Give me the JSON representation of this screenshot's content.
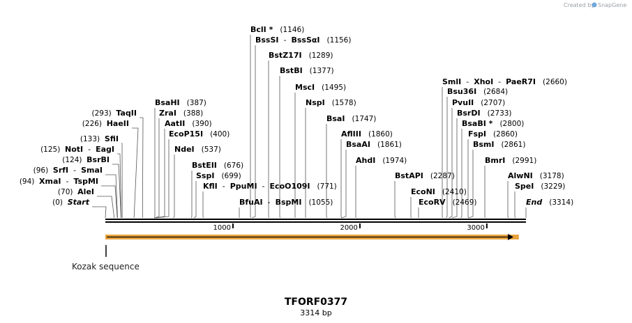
{
  "credit": {
    "prefix": "Created by",
    "brand": "SnapGene",
    "brand_color": "#6fa8dc",
    "icon": "snapgene-logo-icon"
  },
  "construct": {
    "name": "TFORF0377",
    "size_label": "3314 bp",
    "length_bp": 3314
  },
  "ruler": {
    "ticks": [
      {
        "bp": 1000,
        "label": "1000"
      },
      {
        "bp": 2000,
        "label": "2000"
      },
      {
        "bp": 3000,
        "label": "3000"
      }
    ]
  },
  "features": [
    {
      "name": "Kozak sequence",
      "start": 0,
      "end": 6,
      "color": "#000000"
    },
    {
      "name": "",
      "start": 0,
      "end": 3214,
      "color": "#e8a33d",
      "direction": "forward"
    }
  ],
  "sites": [
    {
      "names": [
        "Start"
      ],
      "pos": 0,
      "pos_label": "(0)",
      "italic": true,
      "side": "left"
    },
    {
      "names": [
        "AleI"
      ],
      "pos": 70,
      "pos_label": "(70)",
      "side": "left"
    },
    {
      "names": [
        "XmaI",
        "TspMI"
      ],
      "pos": 94,
      "pos_label": "(94)",
      "side": "left"
    },
    {
      "names": [
        "SrfI",
        "SmaI"
      ],
      "pos": 96,
      "pos_label": "(96)",
      "side": "left"
    },
    {
      "names": [
        "BsrBI"
      ],
      "pos": 124,
      "pos_label": "(124)",
      "side": "left"
    },
    {
      "names": [
        "NotI",
        "EagI"
      ],
      "pos": 125,
      "pos_label": "(125)",
      "side": "left"
    },
    {
      "names": [
        "SfiI"
      ],
      "pos": 133,
      "pos_label": "(133)",
      "side": "left"
    },
    {
      "names": [
        "HaeII"
      ],
      "pos": 226,
      "pos_label": "(226)",
      "side": "left"
    },
    {
      "names": [
        "TaqII"
      ],
      "pos": 293,
      "pos_label": "(293)",
      "side": "left"
    },
    {
      "names": [
        "BsaHI"
      ],
      "pos": 387,
      "pos_label": "(387)",
      "side": "right"
    },
    {
      "names": [
        "ZraI"
      ],
      "pos": 388,
      "pos_label": "(388)",
      "side": "right"
    },
    {
      "names": [
        "AatII"
      ],
      "pos": 390,
      "pos_label": "(390)",
      "side": "right"
    },
    {
      "names": [
        "EcoP15I"
      ],
      "pos": 400,
      "pos_label": "(400)",
      "side": "right"
    },
    {
      "names": [
        "NdeI"
      ],
      "pos": 537,
      "pos_label": "(537)",
      "side": "right"
    },
    {
      "names": [
        "BstEII"
      ],
      "pos": 676,
      "pos_label": "(676)",
      "side": "right"
    },
    {
      "names": [
        "SspI"
      ],
      "pos": 699,
      "pos_label": "(699)",
      "side": "right"
    },
    {
      "names": [
        "KflI",
        "PpuMI",
        "EcoO109I"
      ],
      "pos": 771,
      "pos_label": "(771)",
      "side": "right"
    },
    {
      "names": [
        "BfuAI",
        "BspMI"
      ],
      "pos": 1055,
      "pos_label": "(1055)",
      "side": "right"
    },
    {
      "names": [
        "BclI"
      ],
      "pos": 1146,
      "pos_label": "(1146)",
      "star": true,
      "side": "right"
    },
    {
      "names": [
        "BssSI",
        "BssSαI"
      ],
      "pos": 1156,
      "pos_label": "(1156)",
      "side": "right"
    },
    {
      "names": [
        "BstZ17I"
      ],
      "pos": 1289,
      "pos_label": "(1289)",
      "side": "right"
    },
    {
      "names": [
        "BstBI"
      ],
      "pos": 1377,
      "pos_label": "(1377)",
      "side": "right"
    },
    {
      "names": [
        "MscI"
      ],
      "pos": 1495,
      "pos_label": "(1495)",
      "side": "right"
    },
    {
      "names": [
        "NspI"
      ],
      "pos": 1578,
      "pos_label": "(1578)",
      "side": "right"
    },
    {
      "names": [
        "BsaI"
      ],
      "pos": 1747,
      "pos_label": "(1747)",
      "side": "right"
    },
    {
      "names": [
        "AflIII"
      ],
      "pos": 1860,
      "pos_label": "(1860)",
      "side": "right"
    },
    {
      "names": [
        "BsaAI"
      ],
      "pos": 1861,
      "pos_label": "(1861)",
      "side": "right"
    },
    {
      "names": [
        "AhdI"
      ],
      "pos": 1974,
      "pos_label": "(1974)",
      "side": "right"
    },
    {
      "names": [
        "BstAPI"
      ],
      "pos": 2287,
      "pos_label": "(2287)",
      "side": "right"
    },
    {
      "names": [
        "EcoNI"
      ],
      "pos": 2410,
      "pos_label": "(2410)",
      "side": "right"
    },
    {
      "names": [
        "EcoRV"
      ],
      "pos": 2469,
      "pos_label": "(2469)",
      "side": "right"
    },
    {
      "names": [
        "SmlI",
        "XhoI",
        "PaeR7I"
      ],
      "pos": 2660,
      "pos_label": "(2660)",
      "side": "right"
    },
    {
      "names": [
        "Bsu36I"
      ],
      "pos": 2684,
      "pos_label": "(2684)",
      "side": "right"
    },
    {
      "names": [
        "PvuII"
      ],
      "pos": 2707,
      "pos_label": "(2707)",
      "side": "right"
    },
    {
      "names": [
        "BsrDI"
      ],
      "pos": 2733,
      "pos_label": "(2733)",
      "side": "right"
    },
    {
      "names": [
        "BsaBI"
      ],
      "pos": 2800,
      "pos_label": "(2800)",
      "star": true,
      "side": "right"
    },
    {
      "names": [
        "FspI"
      ],
      "pos": 2860,
      "pos_label": "(2860)",
      "side": "right"
    },
    {
      "names": [
        "BsmI"
      ],
      "pos": 2861,
      "pos_label": "(2861)",
      "side": "right"
    },
    {
      "names": [
        "BmrI"
      ],
      "pos": 2991,
      "pos_label": "(2991)",
      "side": "right"
    },
    {
      "names": [
        "AlwNI"
      ],
      "pos": 3178,
      "pos_label": "(3178)",
      "side": "right"
    },
    {
      "names": [
        "SpeI"
      ],
      "pos": 3229,
      "pos_label": "(3229)",
      "side": "right"
    },
    {
      "names": [
        "End"
      ],
      "pos": 3314,
      "pos_label": "(3314)",
      "italic": true,
      "side": "right"
    }
  ]
}
